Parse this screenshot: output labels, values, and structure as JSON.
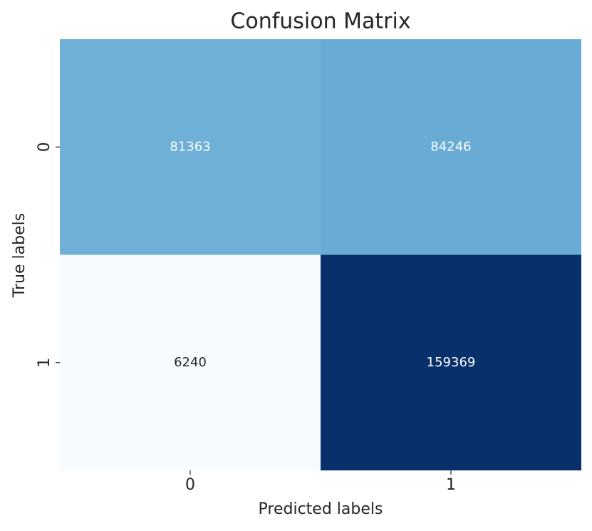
{
  "chart_data": {
    "type": "heatmap",
    "title": "Confusion Matrix",
    "xlabel": "Predicted labels",
    "ylabel": "True labels",
    "x_categories": [
      "0",
      "1"
    ],
    "y_categories": [
      "0",
      "1"
    ],
    "values": [
      [
        81363,
        84246
      ],
      [
        6240,
        159369
      ]
    ],
    "colormap": "Blues"
  }
}
